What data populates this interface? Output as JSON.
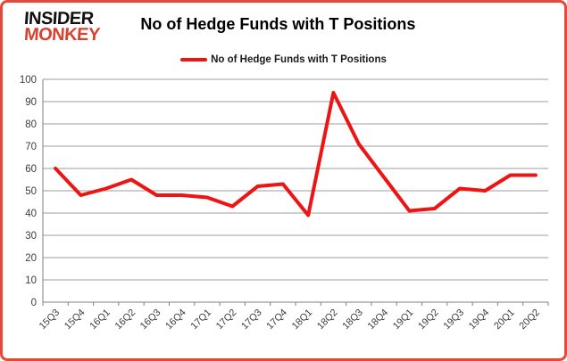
{
  "header": {
    "logo_line1": "INSIDER",
    "logo_line2": "MONKEY",
    "title": "No of Hedge Funds with T Positions"
  },
  "legend": {
    "label": "No of Hedge Funds with T Positions"
  },
  "colors": {
    "line": "#ed1414",
    "border": "#e6493a",
    "grid": "#9c9c9c",
    "axis": "#7f7f7f",
    "tick_label": "#3c3c3c",
    "logo_black": "#111111",
    "logo_red": "#d8422f"
  },
  "chart_data": {
    "type": "line",
    "title": "No of Hedge Funds with T Positions",
    "categories": [
      "15Q3",
      "15Q4",
      "16Q1",
      "16Q2",
      "16Q3",
      "16Q4",
      "17Q1",
      "17Q2",
      "17Q3",
      "17Q4",
      "18Q1",
      "18Q2",
      "18Q3",
      "18Q4",
      "19Q1",
      "19Q2",
      "19Q3",
      "19Q4",
      "20Q1",
      "20Q2"
    ],
    "series": [
      {
        "name": "No of Hedge Funds with T Positions",
        "values": [
          60,
          48,
          51,
          55,
          48,
          48,
          47,
          43,
          52,
          53,
          39,
          94,
          71,
          56,
          41,
          42,
          51,
          50,
          57,
          57
        ]
      }
    ],
    "xlabel": "",
    "ylabel": "",
    "ylim": [
      0,
      100
    ],
    "ytick_interval": 10,
    "grid": true,
    "legend_position": "top",
    "marker": "none"
  }
}
